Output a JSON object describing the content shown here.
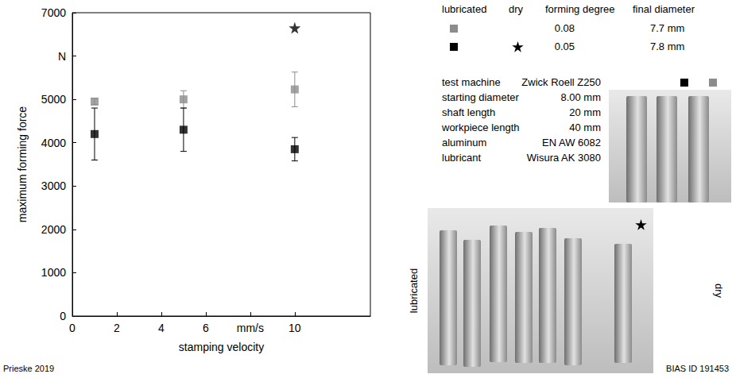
{
  "chart_data": {
    "type": "scatter",
    "x_label": "stamping velocity",
    "y_label": "maximum forming force",
    "xlim": [
      0,
      13.4
    ],
    "xticks": [
      0,
      2,
      4,
      6,
      {
        "value": 8,
        "label": "mm/s"
      },
      10
    ],
    "ylim": [
      0,
      7000
    ],
    "yticks": [
      0,
      1000,
      2000,
      3000,
      4000,
      5000,
      {
        "value": 6000,
        "label": "N"
      },
      7000
    ],
    "grid": false,
    "series": [
      {
        "color": "#8c8c8c",
        "marker": "square",
        "x": [
          1,
          5,
          10
        ],
        "values": [
          4950,
          5000,
          5230
        ],
        "error_low": [
          4880,
          4800,
          4830
        ],
        "error_high": [
          5020,
          5200,
          5630
        ]
      },
      {
        "color": "#000000",
        "marker": "square",
        "x": [
          1,
          5,
          10
        ],
        "values": [
          4200,
          4300,
          3850
        ],
        "error_low": [
          3600,
          3800,
          3580
        ],
        "error_high": [
          4800,
          4800,
          4120
        ]
      },
      {
        "color": "#000000",
        "marker": "star",
        "x": [
          10
        ],
        "values": [
          6650
        ]
      }
    ]
  },
  "legend_table": {
    "columns": [
      "lubricated",
      "dry",
      "forming degree",
      "final diameter"
    ],
    "rows": [
      {
        "lubricated_series": 0,
        "dry_series": null,
        "forming_degree": "0.08",
        "final_diameter": "7.7 mm"
      },
      {
        "lubricated_series": 1,
        "dry_series": 2,
        "forming_degree": "0.05",
        "final_diameter": "7.8 mm"
      }
    ]
  },
  "specs": [
    [
      "test machine",
      "Zwick Roell Z250"
    ],
    [
      "starting diameter",
      "8.00 mm"
    ],
    [
      "shaft length",
      "20 mm"
    ],
    [
      "workpiece length",
      "40 mm"
    ],
    [
      "aluminum",
      "EN AW 6082"
    ],
    [
      "lubricant",
      "Wisura AK 3080"
    ]
  ],
  "photos": [
    {
      "series_markers": [
        1,
        0
      ]
    },
    {
      "left_label": "lubricated",
      "right_label": "dry",
      "series_marker": 2
    }
  ],
  "source": "Prieske 2019",
  "id": "BIAS ID 191453"
}
